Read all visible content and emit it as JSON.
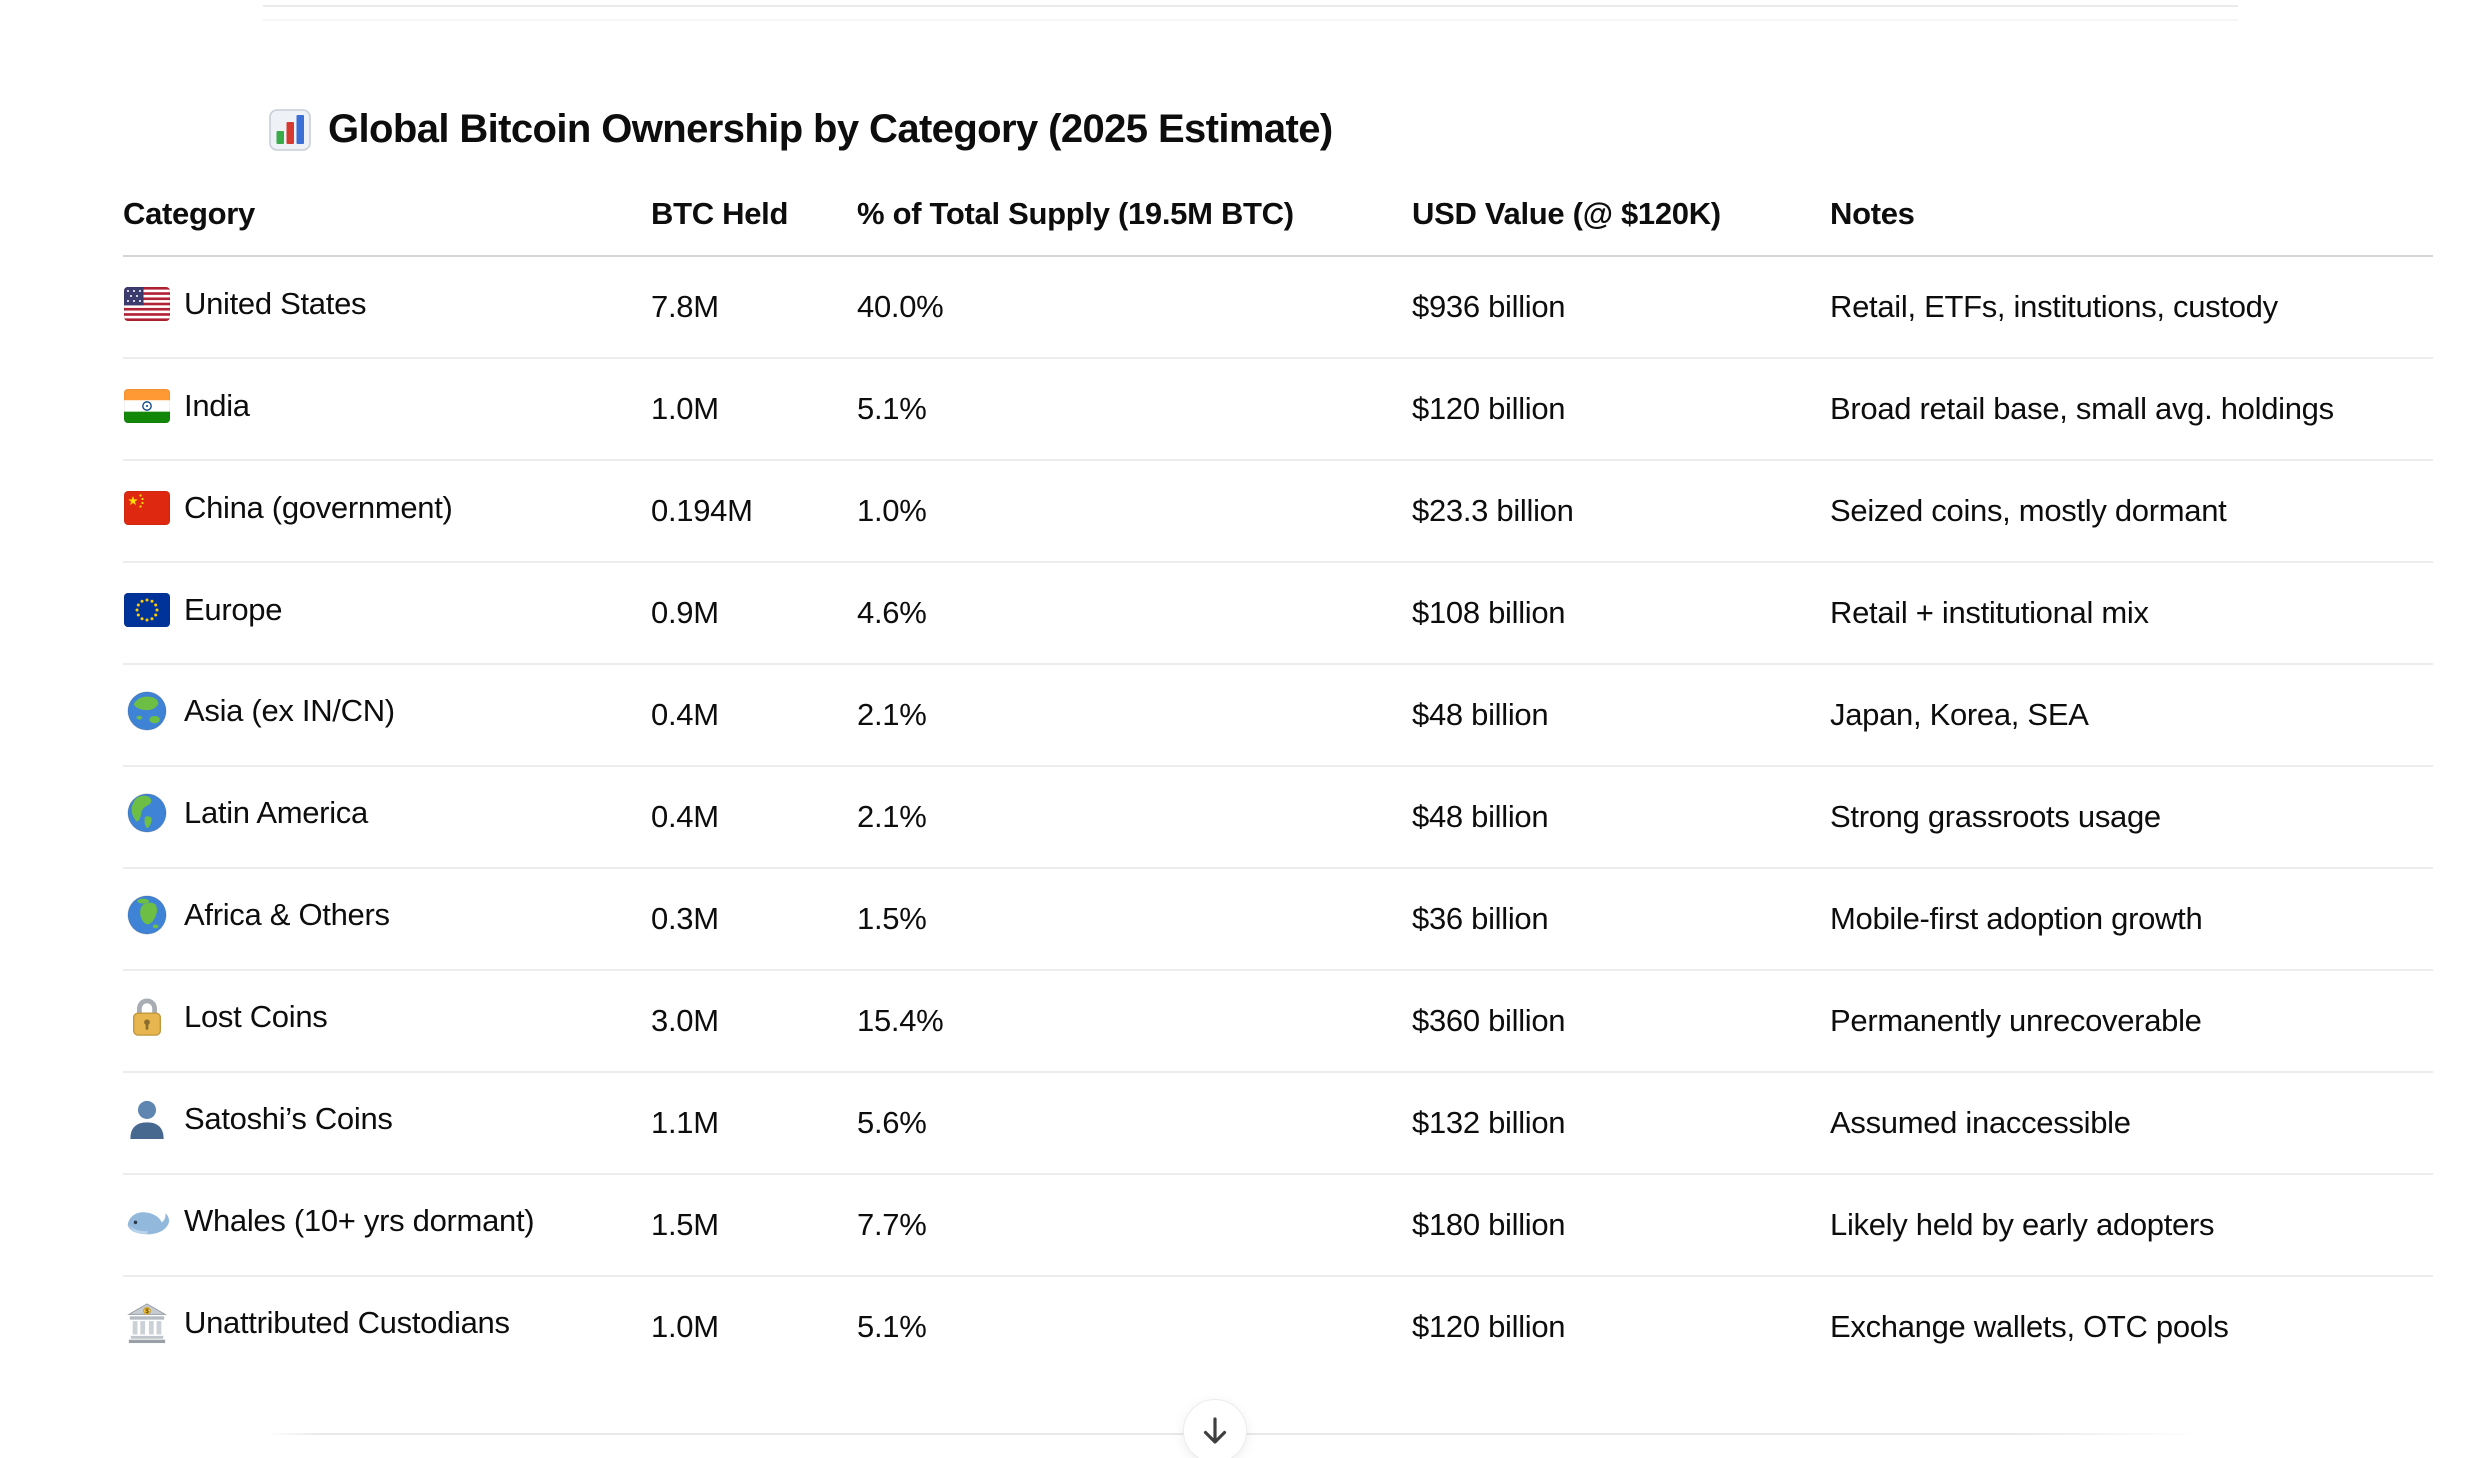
{
  "title": {
    "icon": "bar-chart",
    "text": "Global Bitcoin Ownership by Category (2025 Estimate)"
  },
  "table": {
    "headers": [
      "Category",
      "BTC Held",
      "% of Total Supply (19.5M BTC)",
      "USD Value (@ $120K)",
      "Notes"
    ],
    "rows": [
      {
        "icon": "us-flag",
        "category": "United States",
        "btc": "7.8M",
        "pct": "40.0%",
        "usd": "$936 billion",
        "notes": "Retail, ETFs, institutions, custody"
      },
      {
        "icon": "india-flag",
        "category": "India",
        "btc": "1.0M",
        "pct": "5.1%",
        "usd": "$120 billion",
        "notes": "Broad retail base, small avg. holdings"
      },
      {
        "icon": "china-flag",
        "category": "China (government)",
        "btc": "0.194M",
        "pct": "1.0%",
        "usd": "$23.3 billion",
        "notes": "Seized coins, mostly dormant"
      },
      {
        "icon": "eu-flag",
        "category": "Europe",
        "btc": "0.9M",
        "pct": "4.6%",
        "usd": "$108 billion",
        "notes": "Retail + institutional mix"
      },
      {
        "icon": "globe-asia",
        "category": "Asia (ex IN/CN)",
        "btc": "0.4M",
        "pct": "2.1%",
        "usd": "$48 billion",
        "notes": "Japan, Korea, SEA"
      },
      {
        "icon": "globe-americas",
        "category": "Latin America",
        "btc": "0.4M",
        "pct": "2.1%",
        "usd": "$48 billion",
        "notes": "Strong grassroots usage"
      },
      {
        "icon": "globe-africa",
        "category": "Africa & Others",
        "btc": "0.3M",
        "pct": "1.5%",
        "usd": "$36 billion",
        "notes": "Mobile-first adoption growth"
      },
      {
        "icon": "lock",
        "category": "Lost Coins",
        "btc": "3.0M",
        "pct": "15.4%",
        "usd": "$360 billion",
        "notes": "Permanently unrecoverable"
      },
      {
        "icon": "bust",
        "category": "Satoshi’s Coins",
        "btc": "1.1M",
        "pct": "5.6%",
        "usd": "$132 billion",
        "notes": "Assumed inaccessible"
      },
      {
        "icon": "whale",
        "category": "Whales (10+ yrs dormant)",
        "btc": "1.5M",
        "pct": "7.7%",
        "usd": "$180 billion",
        "notes": "Likely held by early adopters"
      },
      {
        "icon": "bank",
        "category": "Unattributed Custodians",
        "btc": "1.0M",
        "pct": "5.1%",
        "usd": "$120 billion",
        "notes": "Exchange wallets, OTC pools"
      }
    ]
  },
  "scroll_button": {
    "label": "Scroll to bottom",
    "glyph": "down-arrow"
  },
  "colors": {
    "text": "#0d0d0d",
    "page_bg": "#ffffff",
    "header_divider": "#d5d6d8",
    "row_divider": "#ececee",
    "bottom_fade_line": "#e8e8e8",
    "arrow": "#3f3f3f"
  }
}
